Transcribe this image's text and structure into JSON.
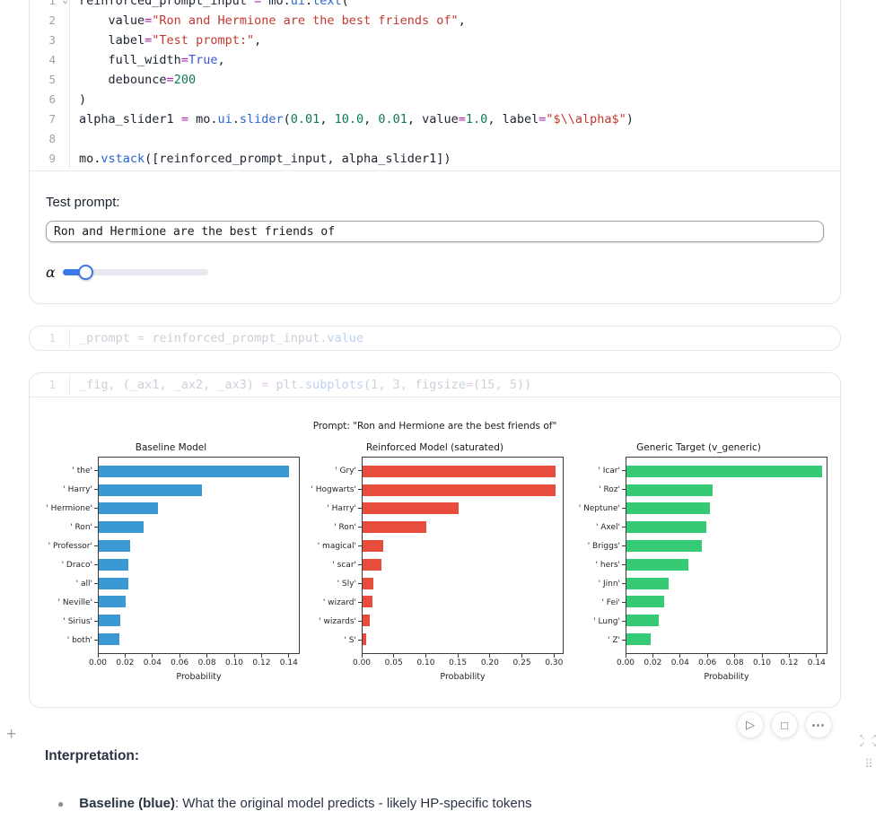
{
  "cells": {
    "cell1": {
      "lines": [
        {
          "n": "1",
          "fold": true,
          "t": [
            [
              "reinforced_prompt_input",
              "v"
            ],
            [
              " ",
              "v"
            ],
            [
              "=",
              "o"
            ],
            [
              " mo.",
              "v"
            ],
            [
              "ui",
              "f"
            ],
            [
              ".",
              "v"
            ],
            [
              "text",
              "f"
            ],
            [
              "(",
              "v"
            ]
          ]
        },
        {
          "n": "2",
          "t": [
            [
              "    value",
              "v"
            ],
            [
              "=",
              "o"
            ],
            [
              "\"Ron and Hermione are the best friends of\"",
              "s"
            ],
            [
              ",",
              "v"
            ]
          ]
        },
        {
          "n": "3",
          "t": [
            [
              "    label",
              "v"
            ],
            [
              "=",
              "o"
            ],
            [
              "\"Test prompt:\"",
              "s"
            ],
            [
              ",",
              "v"
            ]
          ]
        },
        {
          "n": "4",
          "t": [
            [
              "    full_width",
              "v"
            ],
            [
              "=",
              "o"
            ],
            [
              "True",
              "k"
            ],
            [
              ",",
              "v"
            ]
          ]
        },
        {
          "n": "5",
          "t": [
            [
              "    debounce",
              "v"
            ],
            [
              "=",
              "o"
            ],
            [
              "200",
              "n"
            ]
          ]
        },
        {
          "n": "6",
          "t": [
            [
              ")",
              "v"
            ]
          ]
        },
        {
          "n": "7",
          "t": [
            [
              "alpha_slider1",
              "v"
            ],
            [
              " ",
              "v"
            ],
            [
              "=",
              "o"
            ],
            [
              " mo.",
              "v"
            ],
            [
              "ui",
              "f"
            ],
            [
              ".",
              "v"
            ],
            [
              "slider",
              "f"
            ],
            [
              "(",
              "v"
            ],
            [
              "0.01",
              "n"
            ],
            [
              ", ",
              "v"
            ],
            [
              "10.0",
              "n"
            ],
            [
              ", ",
              "v"
            ],
            [
              "0.01",
              "n"
            ],
            [
              ", value",
              "v"
            ],
            [
              "=",
              "o"
            ],
            [
              "1.0",
              "n"
            ],
            [
              ", label",
              "v"
            ],
            [
              "=",
              "o"
            ],
            [
              "\"$\\\\alpha$\"",
              "s"
            ],
            [
              ")",
              "v"
            ]
          ]
        },
        {
          "n": "8",
          "t": [
            [
              "",
              "v"
            ]
          ]
        },
        {
          "n": "9",
          "t": [
            [
              "mo.",
              "v"
            ],
            [
              "vstack",
              "f"
            ],
            [
              "([reinforced_prompt_input, alpha_slider1])",
              "v"
            ]
          ]
        }
      ],
      "output": {
        "label": "Test prompt:",
        "input_value": "Ron and Hermione are the best friends of",
        "slider_label": "α"
      }
    },
    "cell2": {
      "lines": [
        {
          "n": "1",
          "t": [
            [
              "_prompt",
              "v"
            ],
            [
              " ",
              "v"
            ],
            [
              "=",
              "o"
            ],
            [
              " reinforced_prompt_input.",
              "v"
            ],
            [
              "value",
              "f"
            ]
          ]
        }
      ]
    },
    "cell3": {
      "lines": [
        {
          "n": "1",
          "t": [
            [
              "_fig, (_ax1, _ax2, _ax3)",
              "v"
            ],
            [
              " ",
              "v"
            ],
            [
              "=",
              "o"
            ],
            [
              " plt.",
              "v"
            ],
            [
              "subplots",
              "f"
            ],
            [
              "(",
              "v"
            ],
            [
              "1",
              "n"
            ],
            [
              ", ",
              "v"
            ],
            [
              "3",
              "n"
            ],
            [
              ", figsize",
              "v"
            ],
            [
              "=",
              "o"
            ],
            [
              "(",
              "v"
            ],
            [
              "15",
              "n"
            ],
            [
              ", ",
              "v"
            ],
            [
              "5",
              "n"
            ],
            [
              "))",
              "v"
            ]
          ]
        }
      ]
    }
  },
  "figure": {
    "suptitle": "Prompt: \"Ron and Hermione are the best friends of\""
  },
  "chart_data": [
    {
      "type": "bar",
      "orientation": "horizontal",
      "title": "Baseline Model",
      "xlabel": "Probability",
      "categories": [
        "' the'",
        "' Harry'",
        "' Hermione'",
        "' Ron'",
        "' Professor'",
        "' Draco'",
        "' all'",
        "' Neville'",
        "' Sirius'",
        "' both'"
      ],
      "values": [
        0.141,
        0.076,
        0.044,
        0.033,
        0.023,
        0.022,
        0.022,
        0.02,
        0.016,
        0.015
      ],
      "xticks": [
        0,
        0.02,
        0.04,
        0.06,
        0.08,
        0.1,
        0.12,
        0.14
      ],
      "xlim": [
        0,
        0.148
      ],
      "color": "#3a98d5"
    },
    {
      "type": "bar",
      "orientation": "horizontal",
      "title": "Reinforced Model (saturated)",
      "xlabel": "Probability",
      "categories": [
        "' Gry'",
        "' Hogwarts'",
        "' Harry'",
        "' Ron'",
        "' magical'",
        "' scar'",
        "' Sly'",
        "' wizard'",
        "' wizards'",
        "' S'"
      ],
      "values": [
        0.303,
        0.303,
        0.151,
        0.1,
        0.033,
        0.03,
        0.017,
        0.015,
        0.011,
        0.006
      ],
      "xticks": [
        0,
        0.05,
        0.1,
        0.15,
        0.2,
        0.25,
        0.3
      ],
      "xlim": [
        0,
        0.315
      ],
      "color": "#e74c3c"
    },
    {
      "type": "bar",
      "orientation": "horizontal",
      "title": "Generic Target (v_generic)",
      "xlabel": "Probability",
      "categories": [
        "' Icar'",
        "' Roz'",
        "' Neptune'",
        "' Axel'",
        "' Briggs'",
        "' hers'",
        "' Jinn'",
        "' Fei'",
        "' Lung'",
        "' Z'"
      ],
      "values": [
        0.145,
        0.064,
        0.062,
        0.059,
        0.056,
        0.046,
        0.031,
        0.028,
        0.024,
        0.018
      ],
      "xticks": [
        0,
        0.02,
        0.04,
        0.06,
        0.08,
        0.1,
        0.12,
        0.14
      ],
      "xlim": [
        0,
        0.148
      ],
      "color": "#35ca74"
    }
  ],
  "controls": {
    "run_icon": "▷",
    "stop_icon": "□",
    "more_icon": "⋯",
    "add_icon": "+",
    "expand_top": "↖ ↗",
    "expand_bottom": "↙ ↘",
    "drag_icon": "⠿"
  },
  "interpretation": {
    "heading": "Interpretation:",
    "bullets": [
      {
        "bold": "Baseline (blue)",
        "rest": ": What the original model predicts - likely HP-specific tokens"
      }
    ]
  }
}
